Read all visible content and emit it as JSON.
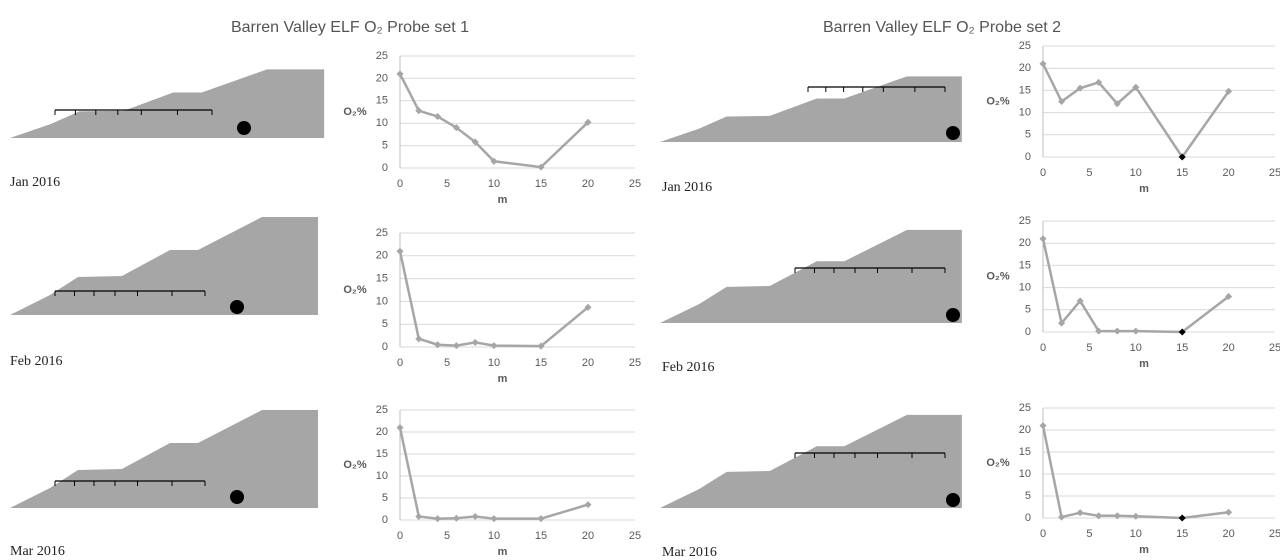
{
  "headers": [
    "Barren Valley ELF O₂ Probe set 1",
    "Barren Valley ELF O₂ Probe set 2"
  ],
  "chart_data": [
    {
      "type": "line",
      "date_label": "Jan 2016",
      "x_label": "m",
      "y_label": "O₂%",
      "x": [
        0,
        2,
        4,
        6,
        8,
        10,
        15,
        20
      ],
      "series": [
        {
          "color": "#a6a6a6",
          "values": [
            21,
            12.8,
            11.5,
            9,
            5.8,
            1.5,
            0.2,
            10.2
          ]
        }
      ],
      "xlim": [
        0,
        25
      ],
      "xticks": [
        0,
        5,
        10,
        15,
        20,
        25
      ],
      "ylim": [
        0,
        25
      ],
      "yticks": [
        0,
        5,
        10,
        15,
        20,
        25
      ],
      "grid": true
    },
    {
      "type": "line",
      "date_label": "Feb 2016",
      "x_label": "m",
      "y_label": "O₂%",
      "x": [
        0,
        2,
        4,
        6,
        8,
        10,
        15,
        20
      ],
      "series": [
        {
          "color": "#a6a6a6",
          "values": [
            21,
            1.8,
            0.5,
            0.3,
            1,
            0.3,
            0.2,
            8.7
          ]
        }
      ],
      "xlim": [
        0,
        25
      ],
      "xticks": [
        0,
        5,
        10,
        15,
        20,
        25
      ],
      "ylim": [
        0,
        25
      ],
      "yticks": [
        0,
        5,
        10,
        15,
        20,
        25
      ],
      "grid": true
    },
    {
      "type": "line",
      "date_label": "Mar 2016",
      "x_label": "m",
      "y_label": "O₂%",
      "x": [
        0,
        2,
        4,
        6,
        8,
        10,
        15,
        20
      ],
      "series": [
        {
          "color": "#a6a6a6",
          "values": [
            21,
            0.8,
            0.3,
            0.4,
            0.8,
            0.3,
            0.3,
            3.5
          ]
        }
      ],
      "xlim": [
        0,
        25
      ],
      "xticks": [
        0,
        5,
        10,
        15,
        20,
        25
      ],
      "ylim": [
        0,
        25
      ],
      "yticks": [
        0,
        5,
        10,
        15,
        20,
        25
      ],
      "grid": true
    },
    {
      "type": "line",
      "date_label": "Jan 2016",
      "x_label": "m",
      "y_label": "O₂%",
      "x": [
        0,
        2,
        4,
        6,
        8,
        10,
        15,
        20
      ],
      "series": [
        {
          "color": "#a6a6a6",
          "values": [
            21,
            12.5,
            15.5,
            16.8,
            12,
            15.7,
            0,
            14.8
          ],
          "marker_colors": [
            "#a6a6a6",
            "#a6a6a6",
            "#a6a6a6",
            "#a6a6a6",
            "#a6a6a6",
            "#a6a6a6",
            "#000000",
            "#a6a6a6"
          ]
        }
      ],
      "xlim": [
        0,
        25
      ],
      "xticks": [
        0,
        5,
        10,
        15,
        20,
        25
      ],
      "ylim": [
        0,
        25
      ],
      "yticks": [
        0,
        5,
        10,
        15,
        20,
        25
      ],
      "grid": true
    },
    {
      "type": "line",
      "date_label": "Feb 2016",
      "x_label": "m",
      "y_label": "O₂%",
      "x": [
        0,
        2,
        4,
        6,
        8,
        10,
        15,
        20
      ],
      "series": [
        {
          "color": "#a6a6a6",
          "values": [
            21,
            2,
            7,
            0.2,
            0.2,
            0.2,
            0,
            8
          ],
          "marker_colors": [
            "#a6a6a6",
            "#a6a6a6",
            "#a6a6a6",
            "#a6a6a6",
            "#a6a6a6",
            "#a6a6a6",
            "#000000",
            "#a6a6a6"
          ]
        }
      ],
      "xlim": [
        0,
        25
      ],
      "xticks": [
        0,
        5,
        10,
        15,
        20,
        25
      ],
      "ylim": [
        0,
        25
      ],
      "yticks": [
        0,
        5,
        10,
        15,
        20,
        25
      ],
      "grid": true
    },
    {
      "type": "line",
      "date_label": "Mar 2016",
      "x_label": "m",
      "y_label": "O₂%",
      "x": [
        0,
        2,
        4,
        6,
        8,
        10,
        15,
        20
      ],
      "series": [
        {
          "color": "#a6a6a6",
          "values": [
            21,
            0.2,
            1.2,
            0.5,
            0.5,
            0.4,
            0,
            1.3
          ],
          "marker_colors": [
            "#a6a6a6",
            "#a6a6a6",
            "#a6a6a6",
            "#a6a6a6",
            "#a6a6a6",
            "#a6a6a6",
            "#000000",
            "#a6a6a6"
          ]
        }
      ],
      "xlim": [
        0,
        25
      ],
      "xticks": [
        0,
        5,
        10,
        15,
        20,
        25
      ],
      "ylim": [
        0,
        25
      ],
      "yticks": [
        0,
        5,
        10,
        15,
        20,
        25
      ],
      "grid": true
    }
  ]
}
